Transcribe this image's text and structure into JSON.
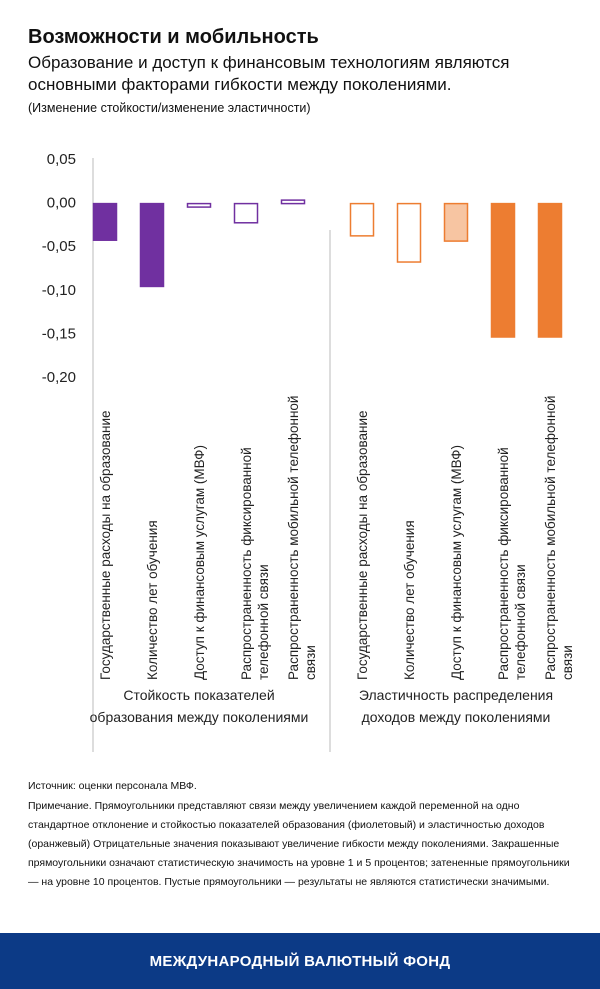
{
  "chart_data": {
    "type": "bar",
    "title": "Возможности и мобильность",
    "subtitle": "Образование и доступ к финансовым технологиям являются основными факторами гибкости между поколениями.",
    "y_label": "(Изменение стойкости/изменение эластичности)",
    "ylim": [
      -0.2,
      0.05
    ],
    "yticks": [
      {
        "value": 0.05,
        "label": "0,05"
      },
      {
        "value": 0,
        "label": "0,00"
      },
      {
        "value": -0.05,
        "label": "-0,05"
      },
      {
        "value": -0.1,
        "label": "-0,10"
      },
      {
        "value": -0.15,
        "label": "-0,15"
      },
      {
        "value": -0.2,
        "label": "-0,20"
      }
    ],
    "groups": [
      {
        "label": "Стойкость показателей образования между поколениями",
        "color": "#7030a0",
        "categories": [
          "Государственные расходы на образование",
          "Количество лет обучения",
          "Доступ к финансовым услугам (МВФ)",
          "Распространенность фиксированной телефонной связи",
          "Распространенность мобильной телефонной связи"
        ],
        "values": [
          -0.042,
          -0.095,
          -0.004,
          -0.022,
          0.004
        ],
        "styles": [
          "filled",
          "filled",
          "empty",
          "empty",
          "empty"
        ]
      },
      {
        "label": "Эластичность распределения доходов между поколениями",
        "color": "#ed7d31",
        "categories": [
          "Государственные расходы на образование",
          "Количество лет обучения",
          "Доступ к финансовым услугам (МВФ)",
          "Распространенность фиксированной телефонной связи",
          "Распространенность мобильной телефонной связи"
        ],
        "values": [
          -0.037,
          -0.067,
          -0.043,
          -0.153,
          -0.153
        ],
        "styles": [
          "empty",
          "empty",
          "shaded",
          "filled",
          "filled"
        ]
      }
    ]
  },
  "source": "Источник: оценки персонала МВФ.",
  "note": "Примечание. Прямоугольники представляют связи между увеличением каждой переменной на одно стандартное отклонение и стойкостью показателей образования (фиолетовый) и эластичностью доходов (оранжевый) Отрицательные значения показывают увеличение гибкости между поколениями. Закрашенные прямоугольники означают статистическую значимость на уровне 1 и 5 процентов; затененные прямоугольники — на уровне 10 процентов. Пустые прямоугольники — результаты не являются статистически значимыми.",
  "footer": "МЕЖДУНАРОДНЫЙ ВАЛЮТНЫЙ ФОНД"
}
